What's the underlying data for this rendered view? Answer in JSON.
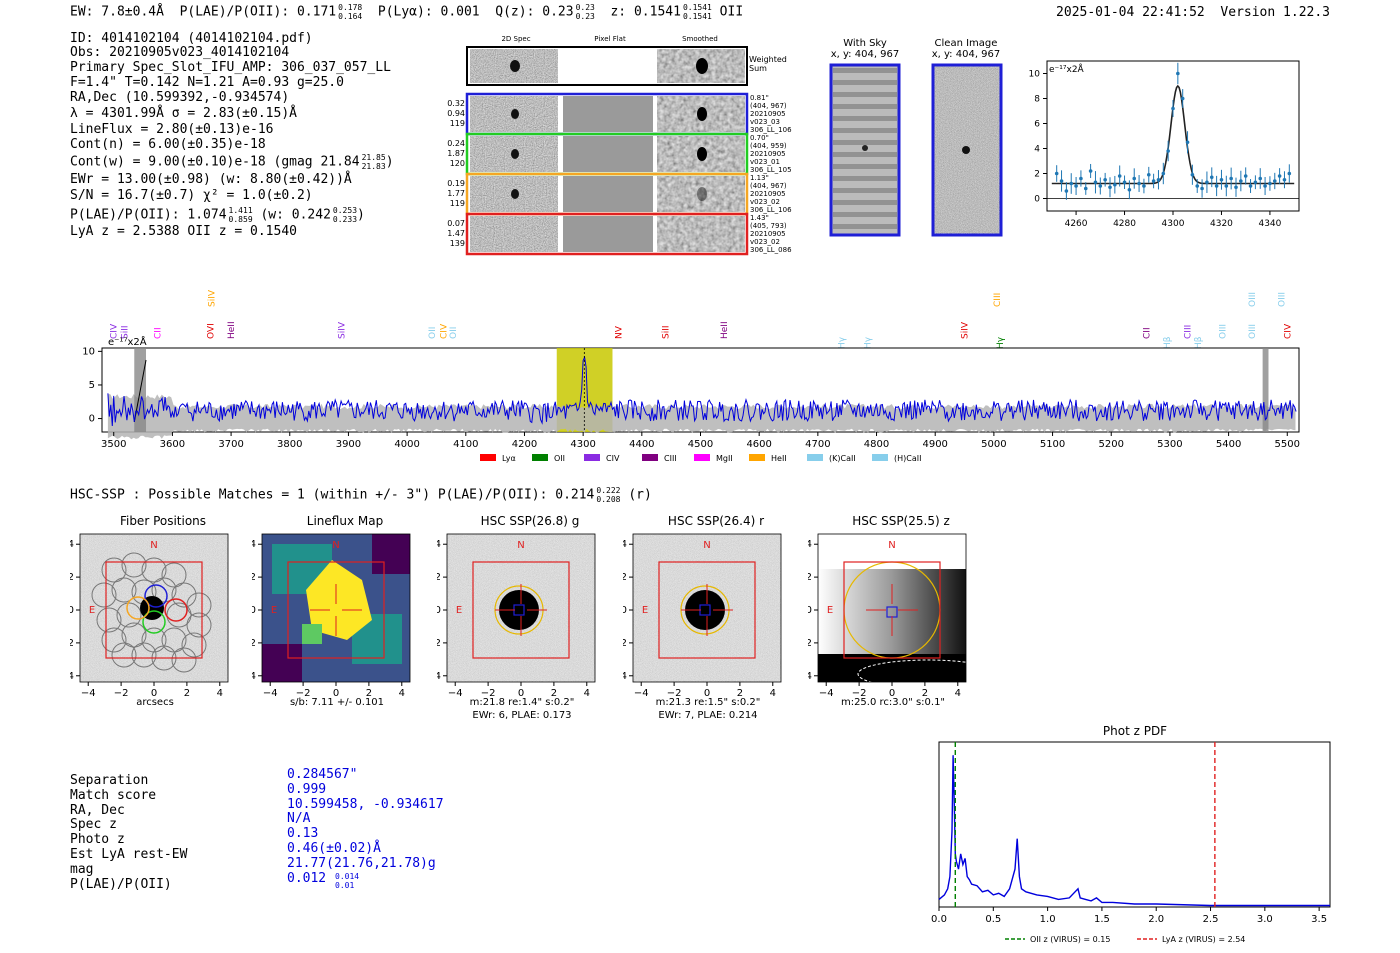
{
  "header": {
    "ew_label": "EW: 7.8±0.4Å",
    "plae_label": "P(LAE)/P(OII): 0.171",
    "plae_hi": "0.178",
    "plae_lo": "0.164",
    "plya_label": "P(Lyα): 0.001",
    "qz_label": "Q(z): 0.23",
    "qz_hi": "0.23",
    "qz_lo": "0.23",
    "z_label": "z: 0.1541",
    "z_hi": "0.1541",
    "z_lo": "0.1541",
    "z_line": "OII",
    "timestamp": "2025-01-04 22:41:52",
    "version": "Version 1.22.3"
  },
  "info": {
    "id": "ID: 4014102104 (4014102104.pdf)",
    "obs": "Obs: 20210905v023_4014102104",
    "primary": "Primary Spec_Slot_IFU_AMP: 306_037_057_LL",
    "fit": "F=1.4\"  T=0.142  N=1.21  A=0.93  g=25.0",
    "radec": "RA,Dec (10.599392,-0.934574)",
    "lambda": "λ = 4301.99Å  σ = 2.83(±0.15)Å",
    "lineflux": "LineFlux = 2.80(±0.13)e-16",
    "contn": "Cont(n) = 6.00(±0.35)e-18",
    "contw": "Cont(w) = 9.00(±0.10)e-18 (gmag 21.84",
    "contw_hi": "21.85",
    "contw_lo": "21.83",
    "contw_end": ")",
    "ewr": "EWr = 13.00(±0.98) (w: 8.80(±0.42))Å",
    "sn": "S/N = 16.7(±0.7)  χ² = 1.0(±0.2)",
    "plae": "P(LAE)/P(OII): 1.074",
    "plae_hi": "1.411",
    "plae_lo": "0.859",
    "plae_w": "(w: 0.242",
    "plae_w_hi": "0.253",
    "plae_w_lo": "0.233",
    "plae_w_end": ")",
    "lyaz": "LyA z = 2.5388  OII z = 0.1540"
  },
  "cutouts": {
    "col_2d": "2D Spec",
    "col_flat": "Pixel Flat",
    "col_smooth": "Smoothed",
    "weighted_sum": "Weighted Sum",
    "rows": [
      {
        "left": [
          "0.32",
          "0.94",
          "119"
        ],
        "right": [
          "0.81\"",
          "(404, 967)",
          "20210905",
          "v023_03",
          "306_LL_106"
        ],
        "color": "#1f1fd6"
      },
      {
        "left": [
          "0.24",
          "1.87",
          "120"
        ],
        "right": [
          "0.70\"",
          "(404, 959)",
          "20210905",
          "v023_01",
          "306_LL_105"
        ],
        "color": "#22cc22"
      },
      {
        "left": [
          "0.19",
          "1.77",
          "119"
        ],
        "right": [
          "1.13\"",
          "(404, 967)",
          "20210905",
          "v023_02",
          "306_LL_106"
        ],
        "color": "#f5a623"
      },
      {
        "left": [
          "0.07",
          "1.47",
          "139"
        ],
        "right": [
          "1.43\"",
          "(405, 793)",
          "20210905",
          "v023_02",
          "306_LL_086"
        ],
        "color": "#e02020"
      }
    ],
    "with_sky": "With Sky",
    "with_sky_xy": "x, y: 404, 967",
    "clean_image": "Clean Image",
    "clean_xy": "x, y: 404, 967"
  },
  "hsc": {
    "title": "HSC-SSP : Possible Matches = 1 (within +/- 3\")  P(LAE)/P(OII): 0.214",
    "plae_hi": "0.222",
    "plae_lo": "0.208",
    "band": "(r)",
    "panels": [
      {
        "title": "Fiber Positions",
        "cap1": "arcsecs",
        "cap2": ""
      },
      {
        "title": "Lineflux Map",
        "cap1": "s/b: 7.11 +/- 0.101",
        "cap2": ""
      },
      {
        "title": "HSC SSP(26.8) g",
        "cap1": "m:21.8  re:1.4\"  s:0.2\"",
        "cap2": "EWr: 6, PLAE: 0.173"
      },
      {
        "title": "HSC SSP(26.4) r",
        "cap1": "m:21.3  re:1.5\"  s:0.2\"",
        "cap2": "EWr: 7, PLAE: 0.214"
      },
      {
        "title": "HSC SSP(25.5) z",
        "cap1": "m:25.0 rc:3.0\"  s:0.1\"",
        "cap2": ""
      }
    ],
    "north": "N",
    "east": "E"
  },
  "match": {
    "labels": [
      "Separation",
      "Match score",
      "RA, Dec",
      "Spec z",
      "Photo z",
      "Est LyA rest-EW",
      "mag",
      "P(LAE)/P(OII)"
    ],
    "values": [
      "0.284567\"",
      "0.999",
      "10.599458, -0.934617",
      "N/A",
      "0.13",
      "0.46(±0.02)Å",
      "21.77(21.76,21.78)g",
      "0.012"
    ],
    "last_hi": "0.014",
    "last_lo": "0.01"
  },
  "chart_data": [
    {
      "type": "scatter",
      "name_printed": "",
      "ylabel": "e⁻¹⁷x2Å",
      "x": [
        4252,
        4254,
        4256,
        4258,
        4260,
        4262,
        4264,
        4266,
        4268,
        4270,
        4272,
        4274,
        4276,
        4278,
        4280,
        4282,
        4284,
        4286,
        4288,
        4290,
        4292,
        4294,
        4296,
        4298,
        4300,
        4302,
        4304,
        4306,
        4308,
        4310,
        4312,
        4314,
        4316,
        4318,
        4320,
        4322,
        4324,
        4326,
        4328,
        4330,
        4332,
        4334,
        4336,
        4338,
        4340,
        4342,
        4344,
        4346,
        4348
      ],
      "y": [
        2.0,
        1.4,
        0.6,
        1.2,
        1.0,
        1.6,
        0.8,
        2.2,
        1.3,
        1.0,
        1.5,
        0.9,
        1.1,
        1.8,
        1.3,
        0.7,
        1.6,
        1.2,
        1.0,
        1.9,
        1.4,
        1.5,
        2.0,
        3.8,
        7.2,
        10.0,
        8.0,
        4.5,
        1.9,
        1.0,
        0.8,
        1.3,
        1.7,
        1.0,
        1.5,
        1.0,
        1.6,
        0.9,
        1.4,
        1.8,
        1.0,
        1.3,
        1.6,
        1.0,
        1.2,
        1.4,
        1.8,
        1.5,
        2.0
      ],
      "fit": {
        "center": 4302.0,
        "amp": 7.8,
        "sigma": 2.83,
        "baseline": 1.2
      },
      "xticks": [
        4260,
        4280,
        4300,
        4320,
        4340
      ],
      "yticks": [
        0,
        2,
        4,
        6,
        8,
        10
      ],
      "xlim": [
        4248,
        4352
      ],
      "ylim": [
        -1,
        11
      ]
    },
    {
      "type": "line",
      "xticks": [
        3500,
        3600,
        3700,
        3800,
        3900,
        4000,
        4100,
        4200,
        4300,
        4400,
        4500,
        4600,
        4700,
        4800,
        4900,
        5000,
        5100,
        5200,
        5300,
        5400,
        5500
      ],
      "yticks": [
        0,
        5,
        10
      ],
      "xlim": [
        3480,
        5520
      ],
      "ylim": [
        -2,
        10.5
      ],
      "ylabel": "e⁻¹⁷x2Å",
      "highlight": [
        4255,
        4350
      ],
      "peak": 4302,
      "legend": [
        "Lyα",
        "OII",
        "CIV",
        "CIII",
        "MgII",
        "HeII",
        "(K)CaII",
        "(H)CaII"
      ],
      "legend_colors": [
        "#ff0000",
        "#008000",
        "#8a2be2",
        "#800080",
        "#ff00ff",
        "#ffa500",
        "#87ceeb",
        "#87ceeb"
      ],
      "lines": [
        {
          "label": "CIV",
          "x": 3500,
          "color": "#8a2be2",
          "row": 2
        },
        {
          "label": "SiII",
          "x": 3518,
          "color": "#8a2be2",
          "row": 2
        },
        {
          "label": "SiIV",
          "x": 3667,
          "color": "#ffa500",
          "row": 0
        },
        {
          "label": "CII",
          "x": 3575,
          "color": "#ff00ff",
          "row": 2
        },
        {
          "label": "OVI",
          "x": 3665,
          "color": "#e00000",
          "row": 2
        },
        {
          "label": "HeII",
          "x": 3700,
          "color": "#800080",
          "row": 2
        },
        {
          "label": "SiIV",
          "x": 3888,
          "color": "#8a2be2",
          "row": 2
        },
        {
          "label": "OII",
          "x": 4042,
          "color": "#87ceeb",
          "row": 2
        },
        {
          "label": "CIV",
          "x": 4062,
          "color": "#ffa500",
          "row": 2
        },
        {
          "label": "OII",
          "x": 4078,
          "color": "#87ceeb",
          "row": 2
        },
        {
          "label": "NV",
          "x": 4360,
          "color": "#e00000",
          "row": 2
        },
        {
          "label": "SiII",
          "x": 4440,
          "color": "#e00000",
          "row": 2
        },
        {
          "label": "HeII",
          "x": 4540,
          "color": "#800080",
          "row": 2
        },
        {
          "label": "Hγ",
          "x": 4740,
          "color": "#87ceeb",
          "row": 3
        },
        {
          "label": "Hγ",
          "x": 4785,
          "color": "#87ceeb",
          "row": 3
        },
        {
          "label": "SiIV",
          "x": 4950,
          "color": "#e00000",
          "row": 2
        },
        {
          "label": "CIII",
          "x": 5005,
          "color": "#ffa500",
          "row": 0
        },
        {
          "label": "Hγ",
          "x": 5010,
          "color": "#008000",
          "row": 3
        },
        {
          "label": "CII",
          "x": 5260,
          "color": "#800080",
          "row": 2
        },
        {
          "label": "Hβ",
          "x": 5295,
          "color": "#87ceeb",
          "row": 3
        },
        {
          "label": "CIII",
          "x": 5330,
          "color": "#8a2be2",
          "row": 2
        },
        {
          "label": "Hβ",
          "x": 5348,
          "color": "#87ceeb",
          "row": 3
        },
        {
          "label": "OIII",
          "x": 5390,
          "color": "#87ceeb",
          "row": 2
        },
        {
          "label": "OIII",
          "x": 5440,
          "color": "#87ceeb",
          "row": 0
        },
        {
          "label": "OIII",
          "x": 5440,
          "color": "#87ceeb",
          "row": 2
        },
        {
          "label": "OIII",
          "x": 5490,
          "color": "#87ceeb",
          "row": 0
        },
        {
          "label": "CIV",
          "x": 5500,
          "color": "#e00000",
          "row": 2
        }
      ]
    },
    {
      "type": "line",
      "title": "Phot z PDF",
      "xticks": [
        0.0,
        0.5,
        1.0,
        1.5,
        2.0,
        2.5,
        3.0,
        3.5
      ],
      "xlim": [
        0,
        3.6
      ],
      "oii_z": 0.15,
      "lya_z": 2.54,
      "legend": [
        "OII z (VIRUS) = 0.15",
        "LyA z (VIRUS) = 2.54"
      ],
      "x": [
        0.0,
        0.05,
        0.08,
        0.1,
        0.12,
        0.13,
        0.14,
        0.15,
        0.16,
        0.18,
        0.2,
        0.22,
        0.24,
        0.26,
        0.28,
        0.3,
        0.35,
        0.4,
        0.45,
        0.5,
        0.55,
        0.6,
        0.65,
        0.7,
        0.72,
        0.74,
        0.76,
        0.8,
        0.9,
        1.0,
        1.1,
        1.2,
        1.28,
        1.3,
        1.35,
        1.4,
        1.45,
        1.5,
        1.6,
        1.8,
        2.0,
        2.5,
        3.0,
        3.6
      ],
      "y": [
        0.05,
        0.08,
        0.12,
        0.2,
        0.5,
        1.0,
        0.7,
        0.35,
        0.3,
        0.25,
        0.35,
        0.28,
        0.32,
        0.2,
        0.18,
        0.15,
        0.14,
        0.1,
        0.11,
        0.08,
        0.09,
        0.07,
        0.12,
        0.25,
        0.45,
        0.2,
        0.12,
        0.1,
        0.08,
        0.07,
        0.05,
        0.06,
        0.12,
        0.06,
        0.05,
        0.04,
        0.06,
        0.03,
        0.03,
        0.02,
        0.02,
        0.01,
        0.01,
        0.01
      ]
    }
  ]
}
